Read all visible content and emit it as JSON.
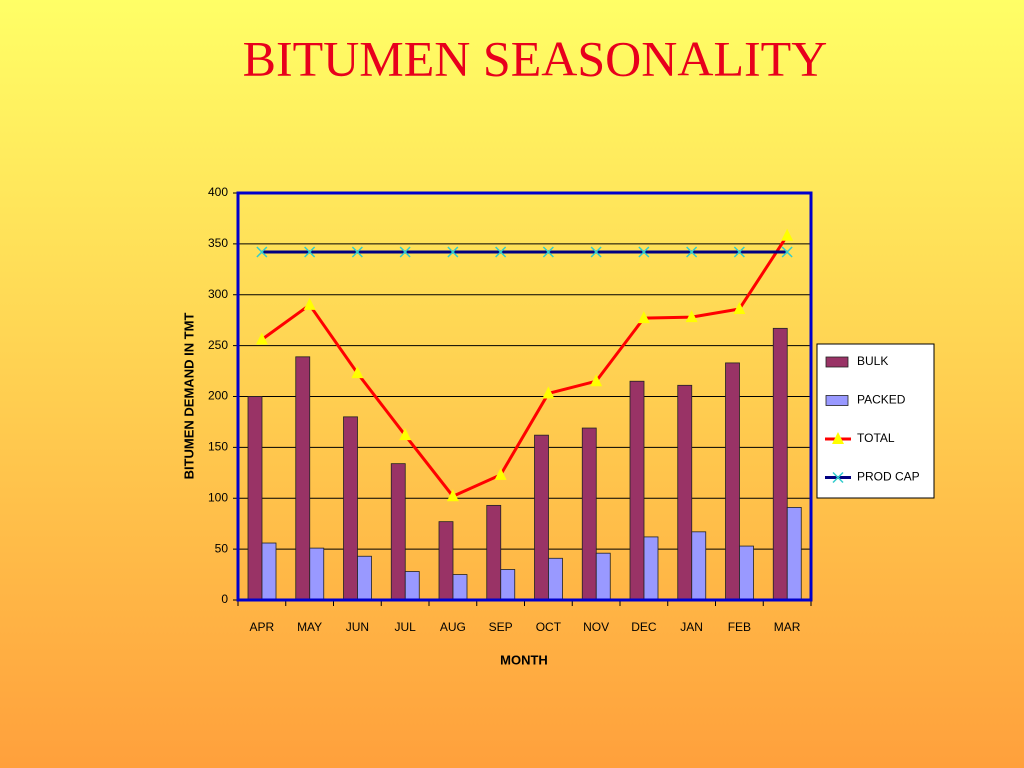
{
  "chart_data": {
    "type": "bar",
    "title": "BITUMEN SEASONALITY",
    "x_label": "MONTH",
    "y_label": "BITUMEN DEMAND IN TMT",
    "categories": [
      "APR",
      "MAY",
      "JUN",
      "JUL",
      "AUG",
      "SEP",
      "OCT",
      "NOV",
      "DEC",
      "JAN",
      "FEB",
      "MAR"
    ],
    "series": [
      {
        "name": "BULK",
        "type": "bar",
        "color": "#993366",
        "values": [
          200,
          239,
          180,
          134,
          77,
          93,
          162,
          169,
          215,
          211,
          233,
          267
        ]
      },
      {
        "name": "PACKED",
        "type": "bar",
        "color": "#9999ff",
        "values": [
          56,
          51,
          43,
          28,
          25,
          30,
          41,
          46,
          62,
          67,
          53,
          91
        ]
      },
      {
        "name": "TOTAL",
        "type": "line",
        "color": "#ff0000",
        "marker": "triangle",
        "marker_color": "#ffff00",
        "values": [
          256,
          290,
          223,
          162,
          102,
          123,
          203,
          215,
          277,
          278,
          286,
          358
        ]
      },
      {
        "name": "PROD CAP",
        "type": "line",
        "color": "#000080",
        "marker": "x",
        "marker_color": "#33cccc",
        "values": [
          342,
          342,
          342,
          342,
          342,
          342,
          342,
          342,
          342,
          342,
          342,
          342
        ]
      }
    ],
    "ylim": [
      0,
      400
    ],
    "yticks": [
      0,
      50,
      100,
      150,
      200,
      250,
      300,
      350,
      400
    ],
    "grid": true,
    "legend": "right"
  }
}
